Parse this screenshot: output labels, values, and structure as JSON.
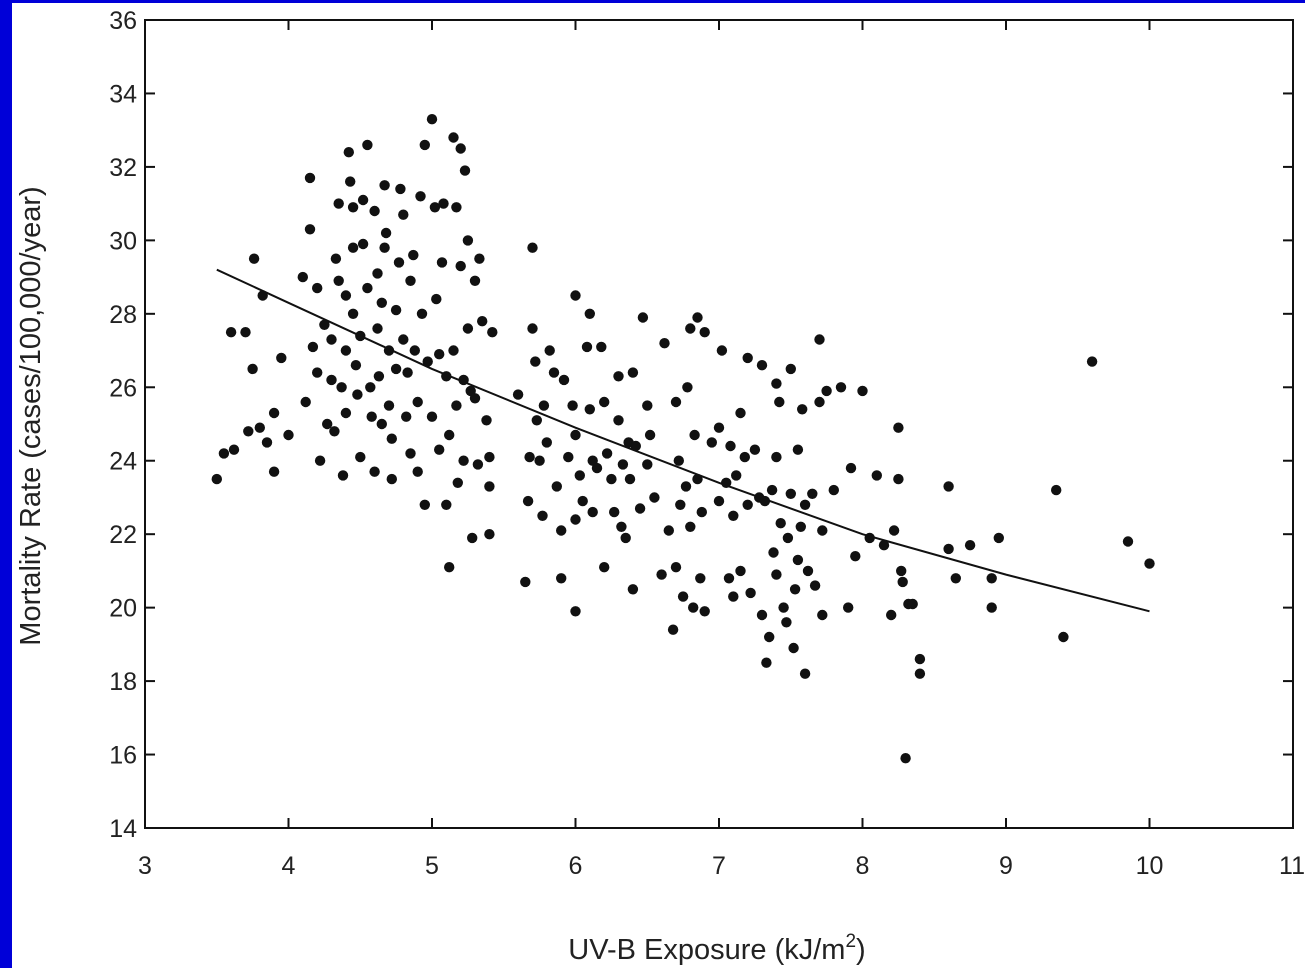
{
  "chart_data": {
    "type": "scatter",
    "title": "",
    "xlabel": "UV-B Exposure (kJ/m",
    "xlabel_sup": "2",
    "xlabel_tail": ")",
    "ylabel": "Mortality Rate (cases/100,000/year)",
    "xlim": [
      3,
      11
    ],
    "ylim": [
      14,
      36
    ],
    "x_ticks": [
      "3",
      "4",
      "5",
      "6",
      "7",
      "8",
      "9",
      "10",
      "11"
    ],
    "y_ticks": [
      "14",
      "16",
      "18",
      "20",
      "22",
      "24",
      "26",
      "28",
      "30",
      "32",
      "34",
      "36"
    ],
    "grid": false,
    "marker_color": "#111111",
    "points": [
      [
        3.5,
        23.5
      ],
      [
        3.55,
        24.2
      ],
      [
        3.6,
        27.5
      ],
      [
        3.62,
        24.3
      ],
      [
        3.7,
        27.5
      ],
      [
        3.72,
        24.8
      ],
      [
        3.75,
        26.5
      ],
      [
        3.76,
        29.5
      ],
      [
        3.8,
        24.9
      ],
      [
        3.82,
        28.5
      ],
      [
        3.85,
        24.5
      ],
      [
        3.9,
        23.7
      ],
      [
        3.95,
        26.8
      ],
      [
        4.0,
        24.7
      ],
      [
        3.9,
        25.3
      ],
      [
        4.1,
        29.0
      ],
      [
        4.12,
        25.6
      ],
      [
        4.15,
        31.7
      ],
      [
        4.15,
        30.3
      ],
      [
        4.17,
        27.1
      ],
      [
        4.2,
        26.4
      ],
      [
        4.2,
        28.7
      ],
      [
        4.22,
        24.0
      ],
      [
        4.25,
        27.7
      ],
      [
        4.27,
        25.0
      ],
      [
        4.3,
        27.3
      ],
      [
        4.3,
        26.2
      ],
      [
        4.32,
        24.8
      ],
      [
        4.33,
        29.5
      ],
      [
        4.35,
        31.0
      ],
      [
        4.35,
        28.9
      ],
      [
        4.37,
        26.0
      ],
      [
        4.38,
        23.6
      ],
      [
        4.4,
        28.5
      ],
      [
        4.4,
        27.0
      ],
      [
        4.4,
        25.3
      ],
      [
        4.42,
        32.4
      ],
      [
        4.43,
        31.6
      ],
      [
        4.45,
        30.9
      ],
      [
        4.45,
        29.8
      ],
      [
        4.45,
        28.0
      ],
      [
        4.47,
        26.6
      ],
      [
        4.48,
        25.8
      ],
      [
        4.5,
        24.1
      ],
      [
        4.5,
        27.4
      ],
      [
        4.52,
        29.9
      ],
      [
        4.52,
        31.1
      ],
      [
        4.55,
        32.6
      ],
      [
        4.55,
        28.7
      ],
      [
        4.57,
        26.0
      ],
      [
        4.58,
        25.2
      ],
      [
        4.6,
        23.7
      ],
      [
        4.6,
        30.8
      ],
      [
        4.62,
        29.1
      ],
      [
        4.62,
        27.6
      ],
      [
        4.63,
        26.3
      ],
      [
        4.65,
        25.0
      ],
      [
        4.65,
        28.3
      ],
      [
        4.67,
        29.8
      ],
      [
        4.67,
        31.5
      ],
      [
        4.68,
        30.2
      ],
      [
        4.7,
        27.0
      ],
      [
        4.7,
        25.5
      ],
      [
        4.72,
        23.5
      ],
      [
        4.72,
        24.6
      ],
      [
        4.75,
        26.5
      ],
      [
        4.75,
        28.1
      ],
      [
        4.77,
        29.4
      ],
      [
        4.78,
        31.4
      ],
      [
        4.8,
        30.7
      ],
      [
        4.8,
        27.3
      ],
      [
        4.82,
        25.2
      ],
      [
        4.83,
        26.4
      ],
      [
        4.85,
        28.9
      ],
      [
        4.85,
        24.2
      ],
      [
        4.87,
        29.6
      ],
      [
        4.88,
        27.0
      ],
      [
        4.9,
        25.6
      ],
      [
        4.9,
        23.7
      ],
      [
        4.92,
        31.2
      ],
      [
        4.93,
        28.0
      ],
      [
        4.95,
        22.8
      ],
      [
        4.95,
        32.6
      ],
      [
        4.97,
        26.7
      ],
      [
        5.0,
        25.2
      ],
      [
        5.0,
        33.3
      ],
      [
        5.02,
        30.9
      ],
      [
        5.03,
        28.4
      ],
      [
        5.05,
        24.3
      ],
      [
        5.05,
        26.9
      ],
      [
        5.07,
        29.4
      ],
      [
        5.08,
        31.0
      ],
      [
        5.1,
        22.8
      ],
      [
        5.1,
        26.3
      ],
      [
        5.12,
        21.1
      ],
      [
        5.12,
        24.7
      ],
      [
        5.15,
        32.8
      ],
      [
        5.15,
        27.0
      ],
      [
        5.17,
        30.9
      ],
      [
        5.17,
        25.5
      ],
      [
        5.18,
        23.4
      ],
      [
        5.2,
        32.5
      ],
      [
        5.2,
        29.3
      ],
      [
        5.22,
        26.2
      ],
      [
        5.22,
        24.0
      ],
      [
        5.23,
        31.9
      ],
      [
        5.25,
        30.0
      ],
      [
        5.25,
        27.6
      ],
      [
        5.27,
        25.9
      ],
      [
        5.28,
        21.9
      ],
      [
        5.3,
        28.9
      ],
      [
        5.3,
        25.7
      ],
      [
        5.32,
        23.9
      ],
      [
        5.33,
        29.5
      ],
      [
        5.35,
        27.8
      ],
      [
        5.38,
        25.1
      ],
      [
        5.4,
        24.1
      ],
      [
        5.4,
        23.3
      ],
      [
        5.4,
        22.0
      ],
      [
        5.42,
        27.5
      ],
      [
        5.6,
        25.8
      ],
      [
        5.65,
        20.7
      ],
      [
        5.67,
        22.9
      ],
      [
        5.68,
        24.1
      ],
      [
        5.7,
        29.8
      ],
      [
        5.7,
        27.6
      ],
      [
        5.72,
        26.7
      ],
      [
        5.73,
        25.1
      ],
      [
        5.75,
        24.0
      ],
      [
        5.77,
        22.5
      ],
      [
        5.78,
        25.5
      ],
      [
        5.8,
        24.5
      ],
      [
        5.82,
        27.0
      ],
      [
        5.85,
        26.4
      ],
      [
        5.87,
        23.3
      ],
      [
        5.9,
        20.8
      ],
      [
        5.9,
        22.1
      ],
      [
        5.92,
        26.2
      ],
      [
        5.95,
        24.1
      ],
      [
        5.98,
        25.5
      ],
      [
        6.0,
        28.5
      ],
      [
        6.0,
        24.7
      ],
      [
        6.0,
        22.4
      ],
      [
        6.0,
        19.9
      ],
      [
        6.03,
        23.6
      ],
      [
        6.05,
        22.9
      ],
      [
        6.08,
        27.1
      ],
      [
        6.1,
        28.0
      ],
      [
        6.1,
        25.4
      ],
      [
        6.12,
        24.0
      ],
      [
        6.12,
        22.6
      ],
      [
        6.15,
        23.8
      ],
      [
        6.18,
        27.1
      ],
      [
        6.2,
        21.1
      ],
      [
        6.2,
        25.6
      ],
      [
        6.22,
        24.2
      ],
      [
        6.25,
        23.5
      ],
      [
        6.27,
        22.6
      ],
      [
        6.3,
        26.3
      ],
      [
        6.3,
        25.1
      ],
      [
        6.32,
        22.2
      ],
      [
        6.33,
        23.9
      ],
      [
        6.35,
        21.9
      ],
      [
        6.37,
        24.5
      ],
      [
        6.38,
        23.5
      ],
      [
        6.4,
        20.5
      ],
      [
        6.4,
        26.4
      ],
      [
        6.42,
        24.4
      ],
      [
        6.45,
        22.7
      ],
      [
        6.47,
        27.9
      ],
      [
        6.5,
        25.5
      ],
      [
        6.5,
        23.9
      ],
      [
        6.52,
        24.7
      ],
      [
        6.55,
        23.0
      ],
      [
        6.6,
        20.9
      ],
      [
        6.62,
        27.2
      ],
      [
        6.65,
        22.1
      ],
      [
        6.68,
        19.4
      ],
      [
        6.7,
        21.1
      ],
      [
        6.7,
        25.6
      ],
      [
        6.72,
        24.0
      ],
      [
        6.73,
        22.8
      ],
      [
        6.75,
        20.3
      ],
      [
        6.77,
        23.3
      ],
      [
        6.78,
        26.0
      ],
      [
        6.8,
        27.6
      ],
      [
        6.8,
        22.2
      ],
      [
        6.82,
        20.0
      ],
      [
        6.83,
        24.7
      ],
      [
        6.85,
        23.5
      ],
      [
        6.85,
        27.9
      ],
      [
        6.87,
        20.8
      ],
      [
        6.88,
        22.6
      ],
      [
        6.9,
        19.9
      ],
      [
        6.9,
        27.5
      ],
      [
        6.95,
        24.5
      ],
      [
        7.0,
        24.9
      ],
      [
        7.0,
        22.9
      ],
      [
        7.02,
        27.0
      ],
      [
        7.05,
        23.4
      ],
      [
        7.07,
        20.8
      ],
      [
        7.08,
        24.4
      ],
      [
        7.1,
        22.5
      ],
      [
        7.1,
        20.3
      ],
      [
        7.12,
        23.6
      ],
      [
        7.15,
        25.3
      ],
      [
        7.15,
        21.0
      ],
      [
        7.18,
        24.1
      ],
      [
        7.2,
        26.8
      ],
      [
        7.2,
        22.8
      ],
      [
        7.22,
        20.4
      ],
      [
        7.25,
        24.3
      ],
      [
        7.28,
        23.0
      ],
      [
        7.3,
        19.8
      ],
      [
        7.3,
        26.6
      ],
      [
        7.32,
        22.9
      ],
      [
        7.33,
        18.5
      ],
      [
        7.35,
        19.2
      ],
      [
        7.37,
        23.2
      ],
      [
        7.38,
        21.5
      ],
      [
        7.4,
        26.1
      ],
      [
        7.4,
        24.1
      ],
      [
        7.4,
        20.9
      ],
      [
        7.42,
        25.6
      ],
      [
        7.43,
        22.3
      ],
      [
        7.45,
        20.0
      ],
      [
        7.47,
        19.6
      ],
      [
        7.48,
        21.9
      ],
      [
        7.5,
        26.5
      ],
      [
        7.5,
        23.1
      ],
      [
        7.52,
        18.9
      ],
      [
        7.53,
        20.5
      ],
      [
        7.55,
        21.3
      ],
      [
        7.55,
        24.3
      ],
      [
        7.57,
        22.2
      ],
      [
        7.58,
        25.4
      ],
      [
        7.6,
        18.2
      ],
      [
        7.6,
        22.8
      ],
      [
        7.62,
        21.0
      ],
      [
        7.65,
        23.1
      ],
      [
        7.67,
        20.6
      ],
      [
        7.7,
        27.3
      ],
      [
        7.7,
        25.6
      ],
      [
        7.72,
        22.1
      ],
      [
        7.72,
        19.8
      ],
      [
        7.75,
        25.9
      ],
      [
        7.8,
        23.2
      ],
      [
        7.85,
        26.0
      ],
      [
        7.9,
        20.0
      ],
      [
        7.92,
        23.8
      ],
      [
        7.95,
        21.4
      ],
      [
        8.0,
        25.9
      ],
      [
        8.05,
        21.9
      ],
      [
        8.1,
        23.6
      ],
      [
        8.15,
        21.7
      ],
      [
        8.2,
        19.8
      ],
      [
        8.22,
        22.1
      ],
      [
        8.25,
        24.9
      ],
      [
        8.25,
        23.5
      ],
      [
        8.27,
        21.0
      ],
      [
        8.28,
        20.7
      ],
      [
        8.3,
        15.9
      ],
      [
        8.32,
        20.1
      ],
      [
        8.35,
        20.1
      ],
      [
        8.4,
        18.6
      ],
      [
        8.4,
        18.2
      ],
      [
        8.6,
        21.6
      ],
      [
        8.6,
        23.3
      ],
      [
        8.65,
        20.8
      ],
      [
        8.75,
        21.7
      ],
      [
        8.9,
        20.0
      ],
      [
        8.9,
        20.8
      ],
      [
        8.95,
        21.9
      ],
      [
        9.35,
        23.2
      ],
      [
        9.4,
        19.2
      ],
      [
        9.6,
        26.7
      ],
      [
        9.85,
        21.8
      ],
      [
        10.0,
        21.2
      ]
    ],
    "fit_line": {
      "type": "exponential",
      "x": [
        3.5,
        4.0,
        5.0,
        6.0,
        7.0,
        8.0,
        9.0,
        10.0
      ],
      "y": [
        29.2,
        28.3,
        26.5,
        24.9,
        23.4,
        22.0,
        20.9,
        19.9
      ]
    }
  }
}
